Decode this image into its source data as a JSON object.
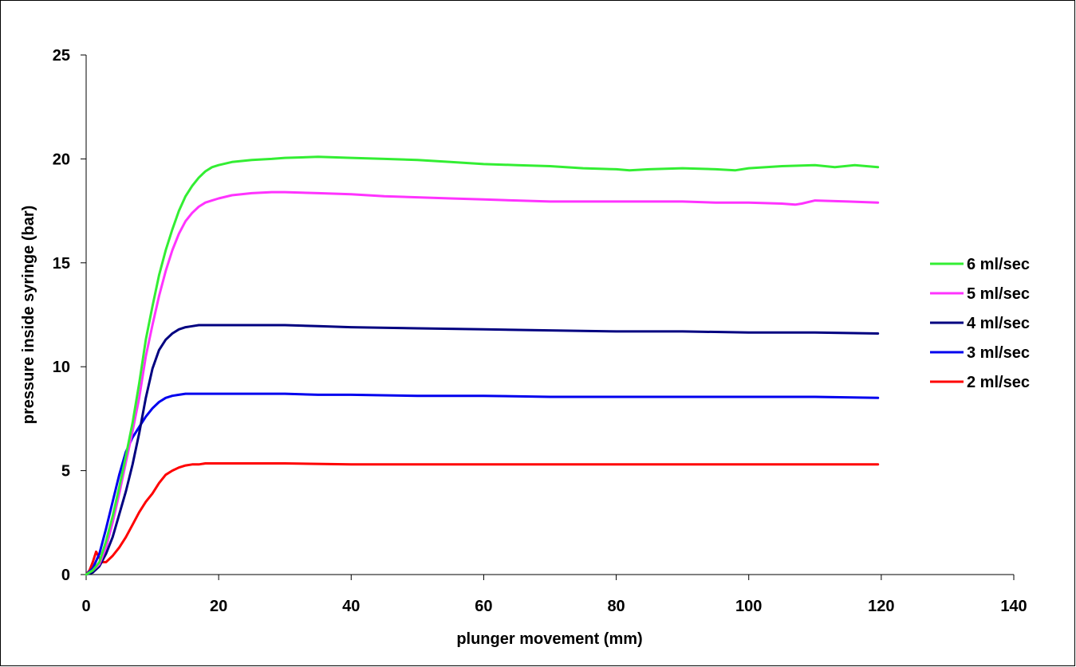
{
  "chart_data": {
    "type": "line",
    "title": "",
    "xlabel": "plunger movement (mm)",
    "ylabel": "pressure inside syringe (bar)",
    "xlim": [
      0,
      140
    ],
    "ylim": [
      0,
      25
    ],
    "xticks": [
      0,
      20,
      40,
      60,
      80,
      100,
      120,
      140
    ],
    "yticks": [
      0,
      5,
      10,
      15,
      20,
      25
    ],
    "grid": false,
    "legend_position": "right",
    "series": [
      {
        "name": "6 ml/sec",
        "color": "#33ee33",
        "x": [
          0,
          1,
          2,
          3,
          4,
          5,
          6,
          7,
          8,
          9,
          10,
          11,
          12,
          13,
          14,
          15,
          16,
          17,
          18,
          19,
          20,
          22,
          25,
          28,
          30,
          35,
          40,
          45,
          50,
          55,
          60,
          65,
          70,
          75,
          80,
          82,
          85,
          90,
          95,
          98,
          100,
          105,
          110,
          113,
          116,
          119.5
        ],
        "y": [
          0,
          0.2,
          0.6,
          1.6,
          2.8,
          4.2,
          5.7,
          7.3,
          9.2,
          11.3,
          12.9,
          14.4,
          15.6,
          16.6,
          17.5,
          18.2,
          18.7,
          19.1,
          19.4,
          19.6,
          19.7,
          19.85,
          19.95,
          20.0,
          20.05,
          20.1,
          20.05,
          20.0,
          19.95,
          19.85,
          19.75,
          19.7,
          19.65,
          19.55,
          19.5,
          19.45,
          19.5,
          19.55,
          19.5,
          19.45,
          19.55,
          19.65,
          19.7,
          19.6,
          19.7,
          19.6
        ]
      },
      {
        "name": "5 ml/sec",
        "color": "#ff33ff",
        "x": [
          0,
          1,
          2,
          3,
          4,
          5,
          6,
          7,
          8,
          9,
          10,
          11,
          12,
          13,
          14,
          15,
          16,
          17,
          18,
          19,
          20,
          22,
          25,
          28,
          30,
          35,
          40,
          45,
          50,
          55,
          60,
          65,
          70,
          75,
          80,
          85,
          90,
          95,
          100,
          105,
          107,
          108,
          110,
          115,
          119.5
        ],
        "y": [
          0,
          0.2,
          0.5,
          1.3,
          2.5,
          3.9,
          5.4,
          6.9,
          8.5,
          10.5,
          12.0,
          13.4,
          14.6,
          15.6,
          16.4,
          17.0,
          17.4,
          17.7,
          17.9,
          18.0,
          18.1,
          18.25,
          18.35,
          18.4,
          18.4,
          18.35,
          18.3,
          18.2,
          18.15,
          18.1,
          18.05,
          18.0,
          17.95,
          17.95,
          17.95,
          17.95,
          17.95,
          17.9,
          17.9,
          17.85,
          17.8,
          17.85,
          18.0,
          17.95,
          17.9
        ]
      },
      {
        "name": "4 ml/sec",
        "color": "#000080",
        "x": [
          0,
          1,
          2,
          3,
          4,
          5,
          6,
          7,
          8,
          9,
          10,
          11,
          12,
          13,
          14,
          15,
          16,
          17,
          18,
          19,
          20,
          22,
          25,
          30,
          35,
          40,
          50,
          60,
          70,
          80,
          90,
          100,
          110,
          119.5
        ],
        "y": [
          0,
          0.1,
          0.4,
          1.0,
          1.8,
          2.9,
          4.0,
          5.3,
          6.8,
          8.5,
          9.9,
          10.8,
          11.3,
          11.6,
          11.8,
          11.9,
          11.95,
          12.0,
          12.0,
          12.0,
          12.0,
          12.0,
          12.0,
          12.0,
          11.95,
          11.9,
          11.85,
          11.8,
          11.75,
          11.7,
          11.7,
          11.65,
          11.65,
          11.6
        ]
      },
      {
        "name": "3 ml/sec",
        "color": "#0000ee",
        "x": [
          0,
          1,
          2,
          3,
          4,
          5,
          6,
          7,
          8,
          9,
          10,
          11,
          12,
          13,
          14,
          15,
          16,
          17,
          18,
          20,
          22,
          25,
          28,
          30,
          35,
          40,
          50,
          60,
          70,
          80,
          90,
          100,
          110,
          119.5
        ],
        "y": [
          0,
          0.3,
          1.0,
          2.2,
          3.5,
          4.8,
          5.9,
          6.6,
          7.1,
          7.6,
          8.0,
          8.3,
          8.5,
          8.6,
          8.65,
          8.7,
          8.7,
          8.7,
          8.7,
          8.7,
          8.7,
          8.7,
          8.7,
          8.7,
          8.65,
          8.65,
          8.6,
          8.6,
          8.55,
          8.55,
          8.55,
          8.55,
          8.55,
          8.5
        ]
      },
      {
        "name": "2 ml/sec",
        "color": "#ff0000",
        "x": [
          0,
          0.5,
          1,
          1.5,
          2,
          2.5,
          3,
          4,
          5,
          6,
          7,
          8,
          9,
          10,
          11,
          12,
          13,
          14,
          15,
          16,
          17,
          18,
          20,
          22,
          25,
          30,
          40,
          50,
          60,
          70,
          80,
          90,
          100,
          110,
          119.5
        ],
        "y": [
          0,
          0.2,
          0.6,
          1.1,
          0.8,
          0.6,
          0.6,
          0.9,
          1.3,
          1.8,
          2.4,
          3.0,
          3.5,
          3.9,
          4.4,
          4.8,
          5.0,
          5.15,
          5.25,
          5.3,
          5.3,
          5.35,
          5.35,
          5.35,
          5.35,
          5.35,
          5.3,
          5.3,
          5.3,
          5.3,
          5.3,
          5.3,
          5.3,
          5.3,
          5.3
        ]
      }
    ]
  }
}
